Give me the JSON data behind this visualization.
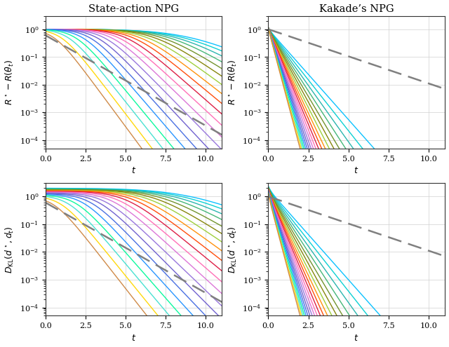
{
  "title_left": "State-action NPG",
  "title_right": "Kakade’s NPG",
  "ylabel_top": "$R^\\star - R(\\theta_t)$",
  "ylabel_bottom": "$D_{\\mathrm{KL}}(d^\\star, d_t)$",
  "xlabel": "$t$",
  "t_max": 11.0,
  "t_steps": 500,
  "ylim": [
    5e-05,
    3.0
  ],
  "yticks": [
    0.0001,
    0.001,
    0.01,
    0.1,
    1.0
  ],
  "xtick_vals": [
    0.0,
    2.5,
    5.0,
    7.5,
    10.0
  ],
  "n_curves": 20,
  "dashed_color": "#808080",
  "colors": [
    "#00bfff",
    "#00ced1",
    "#20b2aa",
    "#3cb371",
    "#6b8e23",
    "#808000",
    "#9acd32",
    "#ff8c00",
    "#ff4500",
    "#dc143c",
    "#ff69b4",
    "#da70d6",
    "#9370db",
    "#6a5acd",
    "#4169e1",
    "#1e90ff",
    "#00fa9a",
    "#40e0d0",
    "#ffd700",
    "#cd853f"
  ],
  "grid_color": "#d0d0d0",
  "linewidth": 1.0,
  "figsize": [
    6.4,
    4.95
  ],
  "dpi": 100
}
